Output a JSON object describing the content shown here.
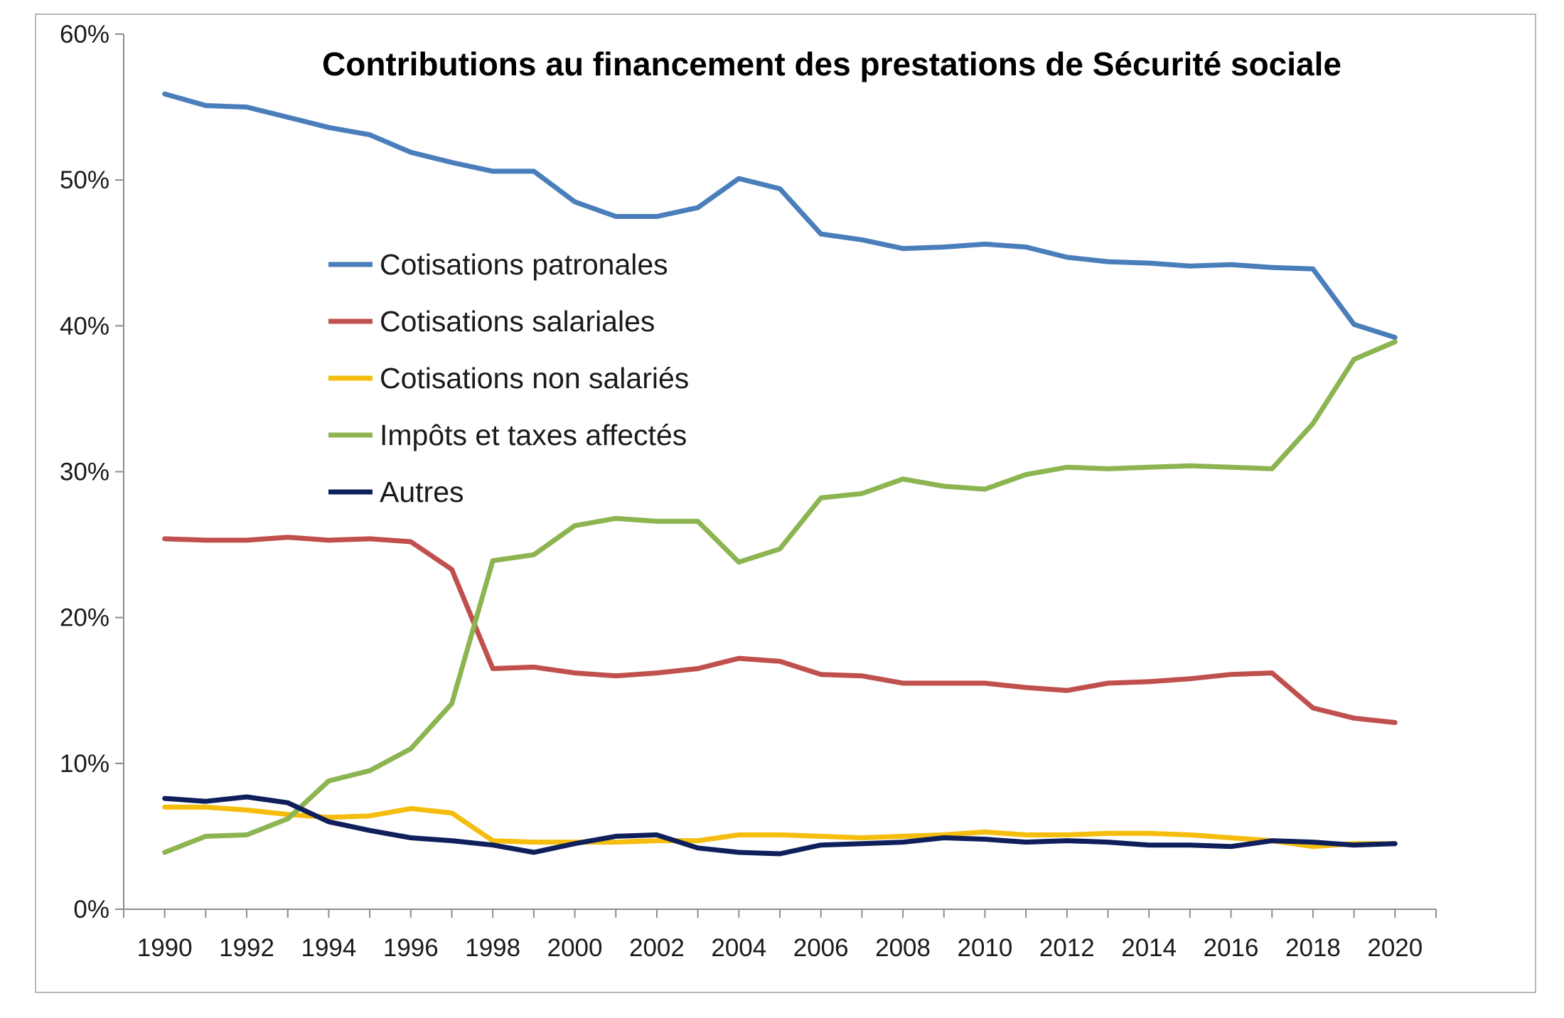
{
  "chart_data": {
    "type": "line",
    "title": "Contributions au financement des prestations de Sécurité sociale",
    "xlabel": "",
    "ylabel": "",
    "ylim": [
      0,
      60
    ],
    "yticks": [
      0,
      10,
      20,
      30,
      40,
      50,
      60
    ],
    "ytick_labels": [
      "0%",
      "10%",
      "20%",
      "30%",
      "40%",
      "50%",
      "60%"
    ],
    "xlim": [
      1989,
      2021
    ],
    "xtick_labels": [
      "1990",
      "1992",
      "1994",
      "1996",
      "1998",
      "2000",
      "2002",
      "2004",
      "2006",
      "2008",
      "2010",
      "2012",
      "2014",
      "2016",
      "2018",
      "2020"
    ],
    "x": [
      1990,
      1991,
      1992,
      1993,
      1994,
      1995,
      1996,
      1997,
      1998,
      1999,
      2000,
      2001,
      2002,
      2003,
      2004,
      2005,
      2006,
      2007,
      2008,
      2009,
      2010,
      2011,
      2012,
      2013,
      2014,
      2015,
      2016,
      2017,
      2018,
      2019,
      2020
    ],
    "grid": false,
    "legend_position": "center-left",
    "series": [
      {
        "name": "Cotisations patronales",
        "color": "#4a7ebb",
        "values": [
          55.9,
          55.1,
          55.0,
          54.3,
          53.6,
          53.1,
          51.9,
          51.2,
          50.6,
          50.6,
          48.5,
          47.5,
          47.5,
          48.1,
          50.1,
          49.4,
          46.3,
          45.9,
          45.3,
          45.4,
          45.6,
          45.4,
          44.7,
          44.4,
          44.3,
          44.1,
          44.2,
          44.0,
          43.9,
          40.1,
          39.2
        ]
      },
      {
        "name": "Cotisations salariales",
        "color": "#c0504d",
        "values": [
          25.4,
          25.3,
          25.3,
          25.5,
          25.3,
          25.4,
          25.2,
          23.3,
          16.5,
          16.6,
          16.2,
          16.0,
          16.2,
          16.5,
          17.2,
          17.0,
          16.1,
          16.0,
          15.5,
          15.5,
          15.5,
          15.2,
          15.0,
          15.5,
          15.6,
          15.8,
          16.1,
          16.2,
          13.8,
          13.1,
          12.8
        ]
      },
      {
        "name": "Cotisations non salariés",
        "color": "#f5bd0d",
        "values": [
          7.0,
          7.0,
          6.8,
          6.5,
          6.3,
          6.4,
          6.9,
          6.6,
          4.7,
          4.6,
          4.6,
          4.6,
          4.7,
          4.7,
          5.1,
          5.1,
          5.0,
          4.9,
          5.0,
          5.1,
          5.3,
          5.1,
          5.1,
          5.2,
          5.2,
          5.1,
          4.9,
          4.7,
          4.3,
          4.5,
          4.5
        ]
      },
      {
        "name": "Impôts et taxes affectés",
        "color": "#8cb551",
        "values": [
          3.9,
          5.0,
          5.1,
          6.2,
          8.8,
          9.5,
          11.0,
          14.1,
          23.9,
          24.3,
          26.3,
          26.8,
          26.6,
          26.6,
          23.8,
          24.7,
          28.2,
          28.5,
          29.5,
          29.0,
          28.8,
          29.8,
          30.3,
          30.2,
          30.3,
          30.4,
          30.3,
          30.2,
          33.3,
          37.7,
          38.9
        ]
      },
      {
        "name": "Autres",
        "color": "#0f1f5c",
        "values": [
          7.6,
          7.4,
          7.7,
          7.3,
          6.0,
          5.4,
          4.9,
          4.7,
          4.4,
          3.9,
          4.5,
          5.0,
          5.1,
          4.2,
          3.9,
          3.8,
          4.4,
          4.5,
          4.6,
          4.9,
          4.8,
          4.6,
          4.7,
          4.6,
          4.4,
          4.4,
          4.3,
          4.7,
          4.6,
          4.4,
          4.5
        ]
      }
    ]
  }
}
